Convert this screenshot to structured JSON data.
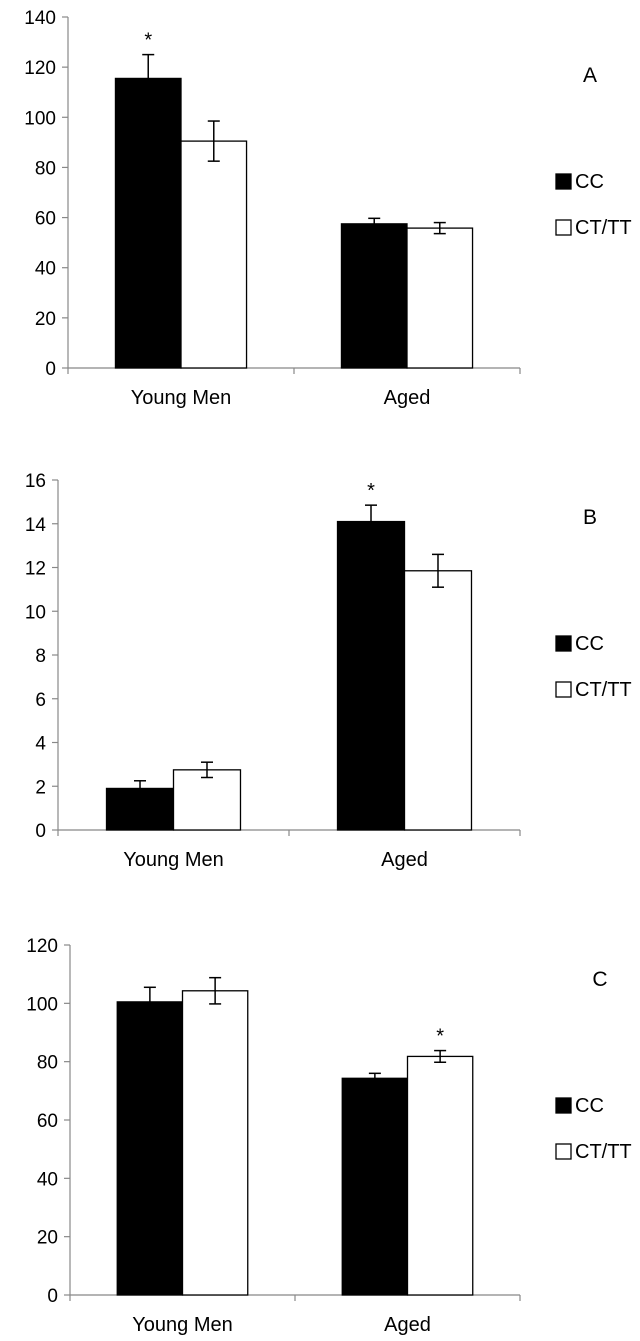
{
  "chart_data": [
    {
      "type": "bar",
      "panel_label": "A",
      "categories": [
        "Young Men",
        "Aged"
      ],
      "series": [
        {
          "name": "CC",
          "color": "#000000",
          "values": [
            115.5,
            57.5
          ],
          "errors": [
            9.5,
            2.2
          ],
          "significance": [
            "*",
            ""
          ]
        },
        {
          "name": "CT/TT",
          "color": "#ffffff",
          "values": [
            90.5,
            55.8
          ],
          "errors": [
            8.0,
            2.2
          ],
          "significance": [
            "",
            ""
          ]
        }
      ],
      "yticks": [
        "0",
        "20",
        "40",
        "60",
        "80",
        "100",
        "120",
        "140"
      ],
      "ylim": [
        0,
        140
      ],
      "legend_position": "right",
      "grid": false
    },
    {
      "type": "bar",
      "panel_label": "B",
      "categories": [
        "Young Men",
        "Aged"
      ],
      "series": [
        {
          "name": "CC",
          "color": "#000000",
          "values": [
            1.9,
            14.1
          ],
          "errors": [
            0.35,
            0.75
          ],
          "significance": [
            "",
            "*"
          ]
        },
        {
          "name": "CT/TT",
          "color": "#ffffff",
          "values": [
            2.75,
            11.85
          ],
          "errors": [
            0.35,
            0.75
          ],
          "significance": [
            "",
            ""
          ]
        }
      ],
      "yticks": [
        "0",
        "2",
        "4",
        "6",
        "8",
        "10",
        "12",
        "14",
        "16"
      ],
      "ylim": [
        0,
        16
      ],
      "legend_position": "right",
      "grid": false
    },
    {
      "type": "bar",
      "panel_label": "C",
      "categories": [
        "Young Men",
        "Aged"
      ],
      "series": [
        {
          "name": "CC",
          "color": "#000000",
          "values": [
            100.5,
            74.3
          ],
          "errors": [
            5.0,
            1.7
          ],
          "significance": [
            "",
            ""
          ]
        },
        {
          "name": "CT/TT",
          "color": "#ffffff",
          "values": [
            104.3,
            81.8
          ],
          "errors": [
            4.5,
            2.0
          ],
          "significance": [
            "",
            "*"
          ]
        }
      ],
      "yticks": [
        "0",
        "20",
        "40",
        "60",
        "80",
        "100",
        "120"
      ],
      "ylim": [
        0,
        120
      ],
      "legend_position": "right",
      "grid": false
    }
  ]
}
